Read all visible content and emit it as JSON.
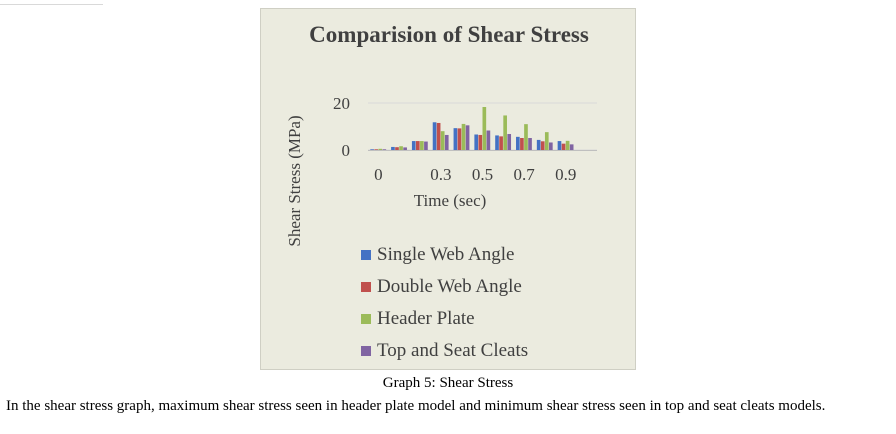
{
  "chart_data": {
    "type": "bar",
    "title": "Comparision of Shear Stress",
    "xlabel": "Time (sec)",
    "ylabel": "Shear Stress (MPa)",
    "x": [
      0,
      0.1,
      0.2,
      0.3,
      0.4,
      0.5,
      0.6,
      0.7,
      0.8,
      0.9,
      1.0
    ],
    "x_tick_labels": [
      "0",
      "0.3",
      "0.5",
      "0.7",
      "0.9"
    ],
    "x_tick_values": [
      0,
      0.3,
      0.5,
      0.7,
      0.9
    ],
    "y_tick_labels": [
      "0",
      "20"
    ],
    "y_tick_values": [
      0,
      20
    ],
    "ylim": [
      0,
      20
    ],
    "grid": true,
    "legend_position": "bottom",
    "series": [
      {
        "name": "Single Web Angle",
        "color": "#4472c4",
        "values": [
          0.3,
          1.3,
          3.8,
          11.8,
          9.3,
          6.6,
          6.2,
          5.6,
          4.3,
          3.8,
          0
        ]
      },
      {
        "name": "Double Web Angle",
        "color": "#c0504d",
        "values": [
          0.3,
          1.2,
          3.8,
          11.5,
          9.2,
          6.4,
          5.8,
          5.1,
          3.7,
          2.7,
          0
        ]
      },
      {
        "name": "Header Plate",
        "color": "#9bbb59",
        "values": [
          0.5,
          1.6,
          3.8,
          8.0,
          11.1,
          18.3,
          14.7,
          11.0,
          7.6,
          3.9,
          0
        ]
      },
      {
        "name": "Top and Seat Cleats",
        "color": "#8064a2",
        "values": [
          0.3,
          1.1,
          3.6,
          6.4,
          10.5,
          8.3,
          6.8,
          5.1,
          3.2,
          2.4,
          0
        ]
      }
    ]
  },
  "caption": "Graph 5: Shear Stress",
  "paragraph": "In the shear stress graph, maximum shear stress seen in header plate model and minimum shear stress seen in top and seat cleats models."
}
